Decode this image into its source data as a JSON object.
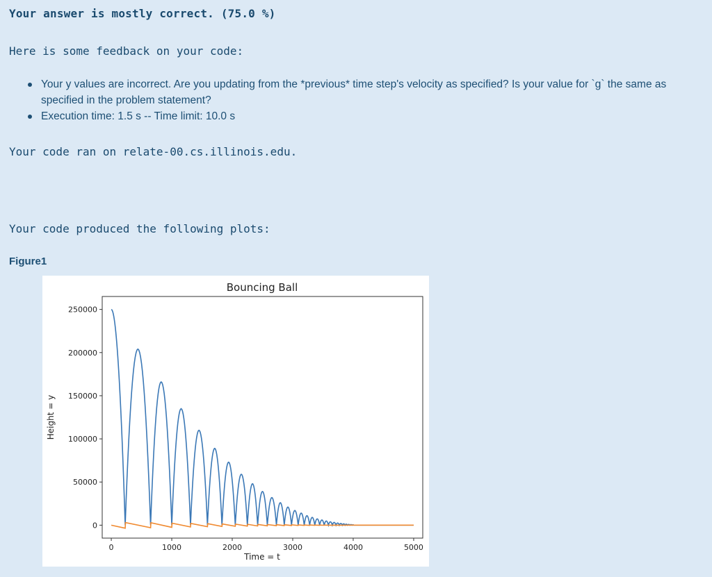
{
  "result": {
    "title": "Your answer is mostly correct. (75.0 %)"
  },
  "feedback": {
    "intro": "Here is some feedback on your code:",
    "items": [
      "Your y values are incorrect. Are you updating from the *previous* time step's velocity as specified? Is your value for `g` the same as specified in the problem statement?",
      "Execution time: 1.5 s -- Time limit: 10.0 s"
    ]
  },
  "ran_on": "Your code ran on relate-00.cs.illinois.edu.",
  "plots": {
    "intro": "Your code produced the following plots:",
    "figure_label": "Figure1"
  },
  "chart_data": {
    "type": "line",
    "title": "Bouncing Ball",
    "xlabel": "Time = t",
    "ylabel": "Height = y",
    "xlim": [
      -150,
      5150
    ],
    "ylim": [
      -15000,
      265000
    ],
    "xticks": [
      0,
      1000,
      2000,
      3000,
      4000,
      5000
    ],
    "yticks": [
      0,
      50000,
      100000,
      150000,
      200000,
      250000
    ],
    "grid": false,
    "series": [
      {
        "color": "#3b78b6",
        "bounces": [
          {
            "start": 0,
            "end": 230,
            "apex_t": 0,
            "apex": 250000
          },
          {
            "start": 230,
            "end": 650,
            "apex": 204000
          },
          {
            "start": 650,
            "end": 1000,
            "apex": 166000
          },
          {
            "start": 1000,
            "end": 1310,
            "apex": 135000
          },
          {
            "start": 1310,
            "end": 1590,
            "apex": 110000
          },
          {
            "start": 1590,
            "end": 1830,
            "apex": 89000
          },
          {
            "start": 1830,
            "end": 2050,
            "apex": 73000
          },
          {
            "start": 2050,
            "end": 2250,
            "apex": 59000
          },
          {
            "start": 2250,
            "end": 2420,
            "apex": 48000
          },
          {
            "start": 2420,
            "end": 2580,
            "apex": 39000
          },
          {
            "start": 2580,
            "end": 2730,
            "apex": 32000
          },
          {
            "start": 2730,
            "end": 2860,
            "apex": 26000
          },
          {
            "start": 2860,
            "end": 2980,
            "apex": 21000
          },
          {
            "start": 2980,
            "end": 3090,
            "apex": 17000
          },
          {
            "start": 3090,
            "end": 3190,
            "apex": 14000
          },
          {
            "start": 3190,
            "end": 3280,
            "apex": 11000
          },
          {
            "start": 3280,
            "end": 3365,
            "apex": 9000
          },
          {
            "start": 3365,
            "end": 3445,
            "apex": 7300
          },
          {
            "start": 3445,
            "end": 3520,
            "apex": 6000
          },
          {
            "start": 3520,
            "end": 3590,
            "apex": 4800
          },
          {
            "start": 3590,
            "end": 3655,
            "apex": 3900
          },
          {
            "start": 3655,
            "end": 3715,
            "apex": 3200
          },
          {
            "start": 3715,
            "end": 3770,
            "apex": 2500
          },
          {
            "start": 3770,
            "end": 3820,
            "apex": 2000
          },
          {
            "start": 3820,
            "end": 3865,
            "apex": 1600
          },
          {
            "start": 3865,
            "end": 3905,
            "apex": 1200
          },
          {
            "start": 3905,
            "end": 3945,
            "apex": 900
          },
          {
            "start": 3945,
            "end": 3980,
            "apex": 700
          },
          {
            "start": 3980,
            "end": 4010,
            "apex": 500
          }
        ],
        "tail": [
          [
            4010,
            0
          ],
          [
            5000,
            0
          ]
        ]
      },
      {
        "color": "#f08a30",
        "points": [
          [
            0,
            0
          ],
          [
            230,
            -3500
          ],
          [
            235,
            3000
          ],
          [
            650,
            -3000
          ],
          [
            655,
            2800
          ],
          [
            1000,
            -2500
          ],
          [
            1005,
            2300
          ],
          [
            1310,
            -2100
          ],
          [
            1315,
            2000
          ],
          [
            1590,
            -1800
          ],
          [
            1595,
            1700
          ],
          [
            1830,
            -1500
          ],
          [
            1835,
            1400
          ],
          [
            2050,
            -1300
          ],
          [
            2055,
            1200
          ],
          [
            2250,
            -1100
          ],
          [
            2255,
            1000
          ],
          [
            2420,
            -900
          ],
          [
            2425,
            850
          ],
          [
            2580,
            -750
          ],
          [
            2585,
            700
          ],
          [
            2730,
            -600
          ],
          [
            2735,
            560
          ],
          [
            2860,
            -500
          ],
          [
            2865,
            460
          ],
          [
            2980,
            -400
          ],
          [
            2985,
            380
          ],
          [
            3090,
            -330
          ],
          [
            3095,
            320
          ],
          [
            3190,
            -270
          ],
          [
            3195,
            260
          ],
          [
            3280,
            -220
          ],
          [
            3285,
            200
          ],
          [
            3365,
            -180
          ],
          [
            3370,
            160
          ],
          [
            3445,
            -140
          ],
          [
            3450,
            130
          ],
          [
            3520,
            -110
          ],
          [
            3525,
            100
          ],
          [
            3600,
            -80
          ],
          [
            3700,
            60
          ],
          [
            3800,
            -40
          ],
          [
            3900,
            20
          ],
          [
            4010,
            0
          ],
          [
            5000,
            0
          ]
        ]
      }
    ]
  }
}
